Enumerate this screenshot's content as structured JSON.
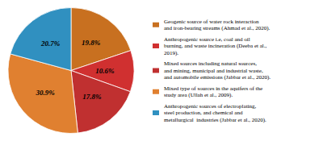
{
  "chart_data": {
    "type": "pie",
    "categories": [
      "Geogenic source of water rock interaction\nand iron-bearing streams (Ahmad et al., 2020).",
      "Anthropogenic source i.e, coal and oil\nburning, and waste incineration (Deeba et al.,\n2019).",
      "Mixed sources including natural sources,\nand mining, municipal and industrial waste,\nand automobile emissions (Jabbar et al., 2020).",
      "Mixed type of sources in the aquifers of the\nstudy area (Ullah et al., 2009).",
      "Anthropogenic sources of electroplating,\nsteel production, and chemical and\nmetallurgical  industries (Jabbar et al., 2020)."
    ],
    "values": [
      19.8,
      10.6,
      17.8,
      30.9,
      20.7
    ],
    "value_labels": [
      "19.8%",
      "10.6%",
      "17.8%",
      "30.9%",
      "20.7%"
    ],
    "colors": [
      "#c87020",
      "#d03030",
      "#c03030",
      "#e08030",
      "#3090c0"
    ],
    "data_labels": true,
    "legend": "right"
  }
}
